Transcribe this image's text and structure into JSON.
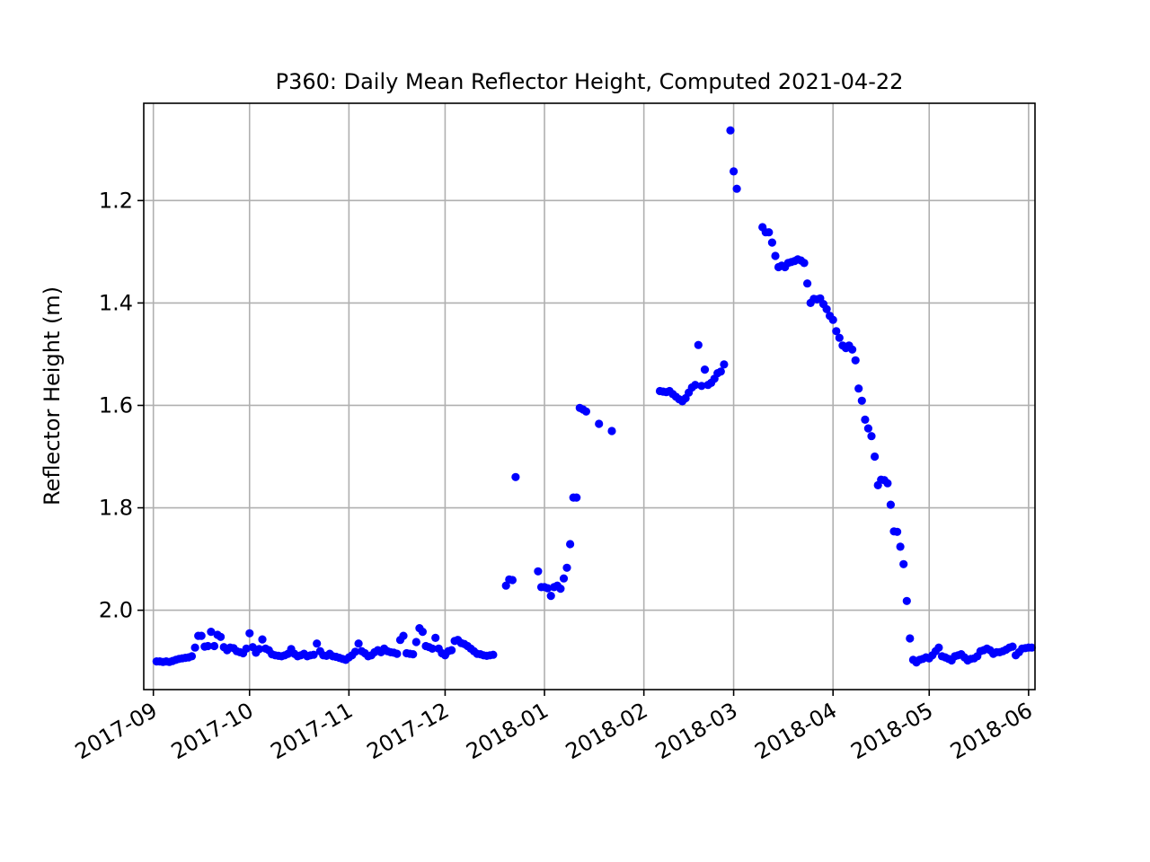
{
  "chart_data": {
    "type": "scatter",
    "title": "P360: Daily Mean Reflector Height, Computed 2021-04-22",
    "xlabel": "",
    "ylabel": "Reflector Height (m)",
    "x_axis_type": "date",
    "xlim": [
      "2017-08-29",
      "2018-06-03"
    ],
    "ylim": [
      2.155,
      1.01
    ],
    "y_inverted": true,
    "x_ticks": [
      "2017-09-01",
      "2017-10-01",
      "2017-11-01",
      "2017-12-01",
      "2018-01-01",
      "2018-02-01",
      "2018-03-01",
      "2018-04-01",
      "2018-05-01",
      "2018-06-01"
    ],
    "x_tick_labels": [
      "2017-09",
      "2017-10",
      "2017-11",
      "2017-12",
      "2018-01",
      "2018-02",
      "2018-03",
      "2018-04",
      "2018-05",
      "2018-06"
    ],
    "y_ticks": [
      1.2,
      1.4,
      1.6,
      1.8,
      2.0
    ],
    "y_tick_labels": [
      "1.2",
      "1.4",
      "1.6",
      "1.8",
      "2.0"
    ],
    "grid": true,
    "marker_color": "#0000ff",
    "series": [
      {
        "points": [
          [
            "2017-09-02",
            2.1
          ],
          [
            "2017-09-03",
            2.1
          ],
          [
            "2017-09-04",
            2.101
          ],
          [
            "2017-09-05",
            2.1
          ],
          [
            "2017-09-06",
            2.101
          ],
          [
            "2017-09-07",
            2.099
          ],
          [
            "2017-09-08",
            2.097
          ],
          [
            "2017-09-09",
            2.095
          ],
          [
            "2017-09-10",
            2.094
          ],
          [
            "2017-09-11",
            2.093
          ],
          [
            "2017-09-12",
            2.092
          ],
          [
            "2017-09-13",
            2.09
          ],
          [
            "2017-09-14",
            2.073
          ],
          [
            "2017-09-15",
            2.05
          ],
          [
            "2017-09-16",
            2.05
          ],
          [
            "2017-09-17",
            2.071
          ],
          [
            "2017-09-18",
            2.07
          ],
          [
            "2017-09-19",
            2.042
          ],
          [
            "2017-09-20",
            2.07
          ],
          [
            "2017-09-21",
            2.048
          ],
          [
            "2017-09-22",
            2.052
          ],
          [
            "2017-09-23",
            2.072
          ],
          [
            "2017-09-24",
            2.078
          ],
          [
            "2017-09-25",
            2.073
          ],
          [
            "2017-09-26",
            2.074
          ],
          [
            "2017-09-27",
            2.08
          ],
          [
            "2017-09-28",
            2.082
          ],
          [
            "2017-09-29",
            2.084
          ],
          [
            "2017-09-30",
            2.075
          ],
          [
            "2017-10-01",
            2.045
          ],
          [
            "2017-10-02",
            2.072
          ],
          [
            "2017-10-03",
            2.083
          ],
          [
            "2017-10-04",
            2.076
          ],
          [
            "2017-10-05",
            2.057
          ],
          [
            "2017-10-06",
            2.075
          ],
          [
            "2017-10-07",
            2.078
          ],
          [
            "2017-10-08",
            2.086
          ],
          [
            "2017-10-09",
            2.088
          ],
          [
            "2017-10-10",
            2.089
          ],
          [
            "2017-10-11",
            2.09
          ],
          [
            "2017-10-12",
            2.088
          ],
          [
            "2017-10-13",
            2.085
          ],
          [
            "2017-10-14",
            2.076
          ],
          [
            "2017-10-15",
            2.085
          ],
          [
            "2017-10-16",
            2.09
          ],
          [
            "2017-10-17",
            2.088
          ],
          [
            "2017-10-18",
            2.085
          ],
          [
            "2017-10-19",
            2.09
          ],
          [
            "2017-10-20",
            2.088
          ],
          [
            "2017-10-21",
            2.087
          ],
          [
            "2017-10-22",
            2.065
          ],
          [
            "2017-10-23",
            2.08
          ],
          [
            "2017-10-24",
            2.088
          ],
          [
            "2017-10-25",
            2.089
          ],
          [
            "2017-10-26",
            2.085
          ],
          [
            "2017-10-27",
            2.09
          ],
          [
            "2017-10-28",
            2.091
          ],
          [
            "2017-10-29",
            2.093
          ],
          [
            "2017-10-30",
            2.095
          ],
          [
            "2017-10-31",
            2.097
          ],
          [
            "2017-11-01",
            2.092
          ],
          [
            "2017-11-02",
            2.088
          ],
          [
            "2017-11-03",
            2.081
          ],
          [
            "2017-11-04",
            2.065
          ],
          [
            "2017-11-05",
            2.08
          ],
          [
            "2017-11-06",
            2.084
          ],
          [
            "2017-11-07",
            2.09
          ],
          [
            "2017-11-08",
            2.088
          ],
          [
            "2017-11-09",
            2.082
          ],
          [
            "2017-11-10",
            2.078
          ],
          [
            "2017-11-11",
            2.082
          ],
          [
            "2017-11-12",
            2.075
          ],
          [
            "2017-11-13",
            2.08
          ],
          [
            "2017-11-14",
            2.082
          ],
          [
            "2017-11-15",
            2.083
          ],
          [
            "2017-11-16",
            2.085
          ],
          [
            "2017-11-17",
            2.058
          ],
          [
            "2017-11-18",
            2.05
          ],
          [
            "2017-11-19",
            2.084
          ],
          [
            "2017-11-20",
            2.085
          ],
          [
            "2017-11-21",
            2.086
          ],
          [
            "2017-11-22",
            2.062
          ],
          [
            "2017-11-23",
            2.035
          ],
          [
            "2017-11-24",
            2.042
          ],
          [
            "2017-11-25",
            2.07
          ],
          [
            "2017-11-26",
            2.072
          ],
          [
            "2017-11-27",
            2.075
          ],
          [
            "2017-11-28",
            2.054
          ],
          [
            "2017-11-29",
            2.075
          ],
          [
            "2017-11-30",
            2.084
          ],
          [
            "2017-12-01",
            2.088
          ],
          [
            "2017-12-02",
            2.08
          ],
          [
            "2017-12-03",
            2.078
          ],
          [
            "2017-12-04",
            2.06
          ],
          [
            "2017-12-05",
            2.058
          ],
          [
            "2017-12-06",
            2.064
          ],
          [
            "2017-12-07",
            2.066
          ],
          [
            "2017-12-08",
            2.07
          ],
          [
            "2017-12-09",
            2.075
          ],
          [
            "2017-12-10",
            2.08
          ],
          [
            "2017-12-11",
            2.085
          ],
          [
            "2017-12-12",
            2.086
          ],
          [
            "2017-12-13",
            2.088
          ],
          [
            "2017-12-14",
            2.089
          ],
          [
            "2017-12-15",
            2.088
          ],
          [
            "2017-12-16",
            2.087
          ],
          [
            "2017-12-20",
            1.952
          ],
          [
            "2017-12-21",
            1.94
          ],
          [
            "2017-12-22",
            1.941
          ],
          [
            "2017-12-23",
            1.74
          ],
          [
            "2017-12-30",
            1.924
          ],
          [
            "2017-12-31",
            1.955
          ],
          [
            "2018-01-01",
            1.955
          ],
          [
            "2018-01-02",
            1.957
          ],
          [
            "2018-01-03",
            1.972
          ],
          [
            "2018-01-04",
            1.955
          ],
          [
            "2018-01-05",
            1.952
          ],
          [
            "2018-01-06",
            1.958
          ],
          [
            "2018-01-07",
            1.938
          ],
          [
            "2018-01-08",
            1.917
          ],
          [
            "2018-01-09",
            1.871
          ],
          [
            "2018-01-10",
            1.78
          ],
          [
            "2018-01-11",
            1.78
          ],
          [
            "2018-01-12",
            1.605
          ],
          [
            "2018-01-13",
            1.608
          ],
          [
            "2018-01-14",
            1.612
          ],
          [
            "2018-01-18",
            1.636
          ],
          [
            "2018-01-22",
            1.65
          ],
          [
            "2018-02-06",
            1.572
          ],
          [
            "2018-02-07",
            1.573
          ],
          [
            "2018-02-08",
            1.574
          ],
          [
            "2018-02-09",
            1.572
          ],
          [
            "2018-02-10",
            1.578
          ],
          [
            "2018-02-11",
            1.583
          ],
          [
            "2018-02-12",
            1.588
          ],
          [
            "2018-02-13",
            1.592
          ],
          [
            "2018-02-14",
            1.586
          ],
          [
            "2018-02-15",
            1.575
          ],
          [
            "2018-02-16",
            1.565
          ],
          [
            "2018-02-17",
            1.56
          ],
          [
            "2018-02-18",
            1.482
          ],
          [
            "2018-02-19",
            1.562
          ],
          [
            "2018-02-20",
            1.53
          ],
          [
            "2018-02-21",
            1.56
          ],
          [
            "2018-02-22",
            1.556
          ],
          [
            "2018-02-23",
            1.548
          ],
          [
            "2018-02-24",
            1.537
          ],
          [
            "2018-02-25",
            1.534
          ],
          [
            "2018-02-26",
            1.52
          ],
          [
            "2018-02-28",
            1.063
          ],
          [
            "2018-03-01",
            1.143
          ],
          [
            "2018-03-02",
            1.177
          ],
          [
            "2018-03-10",
            1.252
          ],
          [
            "2018-03-11",
            1.262
          ],
          [
            "2018-03-12",
            1.262
          ],
          [
            "2018-03-13",
            1.282
          ],
          [
            "2018-03-14",
            1.308
          ],
          [
            "2018-03-15",
            1.33
          ],
          [
            "2018-03-16",
            1.327
          ],
          [
            "2018-03-17",
            1.33
          ],
          [
            "2018-03-18",
            1.322
          ],
          [
            "2018-03-19",
            1.32
          ],
          [
            "2018-03-20",
            1.318
          ],
          [
            "2018-03-21",
            1.315
          ],
          [
            "2018-03-22",
            1.317
          ],
          [
            "2018-03-23",
            1.322
          ],
          [
            "2018-03-24",
            1.362
          ],
          [
            "2018-03-25",
            1.4
          ],
          [
            "2018-03-26",
            1.392
          ],
          [
            "2018-03-27",
            1.393
          ],
          [
            "2018-03-28",
            1.391
          ],
          [
            "2018-03-29",
            1.402
          ],
          [
            "2018-03-30",
            1.412
          ],
          [
            "2018-03-31",
            1.425
          ],
          [
            "2018-04-01",
            1.433
          ],
          [
            "2018-04-02",
            1.455
          ],
          [
            "2018-04-03",
            1.468
          ],
          [
            "2018-04-04",
            1.483
          ],
          [
            "2018-04-05",
            1.488
          ],
          [
            "2018-04-06",
            1.483
          ],
          [
            "2018-04-07",
            1.491
          ],
          [
            "2018-04-08",
            1.512
          ],
          [
            "2018-04-09",
            1.567
          ],
          [
            "2018-04-10",
            1.591
          ],
          [
            "2018-04-11",
            1.628
          ],
          [
            "2018-04-12",
            1.645
          ],
          [
            "2018-04-13",
            1.66
          ],
          [
            "2018-04-14",
            1.7
          ],
          [
            "2018-04-15",
            1.756
          ],
          [
            "2018-04-16",
            1.745
          ],
          [
            "2018-04-17",
            1.746
          ],
          [
            "2018-04-18",
            1.752
          ],
          [
            "2018-04-19",
            1.794
          ],
          [
            "2018-04-20",
            1.846
          ],
          [
            "2018-04-21",
            1.847
          ],
          [
            "2018-04-22",
            1.876
          ],
          [
            "2018-04-23",
            1.91
          ],
          [
            "2018-04-24",
            1.982
          ],
          [
            "2018-04-25",
            2.055
          ],
          [
            "2018-04-26",
            2.097
          ],
          [
            "2018-04-27",
            2.102
          ],
          [
            "2018-04-28",
            2.097
          ],
          [
            "2018-04-29",
            2.095
          ],
          [
            "2018-04-30",
            2.092
          ],
          [
            "2018-05-01",
            2.094
          ],
          [
            "2018-05-02",
            2.088
          ],
          [
            "2018-05-03",
            2.08
          ],
          [
            "2018-05-04",
            2.073
          ],
          [
            "2018-05-05",
            2.09
          ],
          [
            "2018-05-06",
            2.092
          ],
          [
            "2018-05-07",
            2.095
          ],
          [
            "2018-05-08",
            2.098
          ],
          [
            "2018-05-09",
            2.09
          ],
          [
            "2018-05-10",
            2.088
          ],
          [
            "2018-05-11",
            2.086
          ],
          [
            "2018-05-12",
            2.092
          ],
          [
            "2018-05-13",
            2.098
          ],
          [
            "2018-05-14",
            2.095
          ],
          [
            "2018-05-15",
            2.094
          ],
          [
            "2018-05-16",
            2.09
          ],
          [
            "2018-05-17",
            2.08
          ],
          [
            "2018-05-18",
            2.078
          ],
          [
            "2018-05-19",
            2.075
          ],
          [
            "2018-05-20",
            2.078
          ],
          [
            "2018-05-21",
            2.085
          ],
          [
            "2018-05-22",
            2.082
          ],
          [
            "2018-05-23",
            2.082
          ],
          [
            "2018-05-24",
            2.08
          ],
          [
            "2018-05-25",
            2.077
          ],
          [
            "2018-05-26",
            2.073
          ],
          [
            "2018-05-27",
            2.071
          ],
          [
            "2018-05-28",
            2.088
          ],
          [
            "2018-05-29",
            2.082
          ],
          [
            "2018-05-30",
            2.075
          ],
          [
            "2018-05-31",
            2.074
          ],
          [
            "2018-06-01",
            2.073
          ],
          [
            "2018-06-02",
            2.073
          ]
        ]
      }
    ]
  }
}
